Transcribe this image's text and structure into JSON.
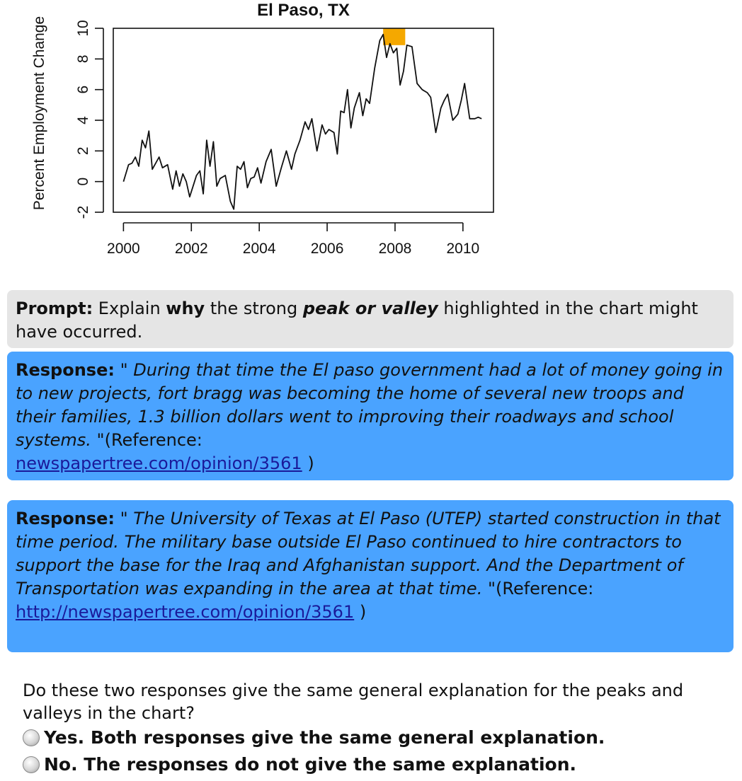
{
  "chart_data": {
    "type": "line",
    "title": "El Paso, TX",
    "xlabel": "",
    "ylabel": "Percent Employment Change",
    "xlim": [
      1999.7,
      2010.9
    ],
    "ylim": [
      -2,
      10
    ],
    "xticks": [
      2000,
      2002,
      2004,
      2006,
      2008,
      2010
    ],
    "xtick_labels": [
      "2000",
      "2002",
      "2004",
      "2006",
      "2008",
      "2010"
    ],
    "yticks": [
      -2,
      0,
      2,
      4,
      6,
      8,
      10
    ],
    "ytick_labels": [
      "-2",
      "0",
      "2",
      "4",
      "6",
      "8",
      "10"
    ],
    "grid": false,
    "highlight": {
      "x_start": 2007.65,
      "x_end": 2008.3,
      "y_bottom": 8.9,
      "y_top": 10,
      "color": "#f5a800"
    },
    "series": [
      {
        "x": [
          2000.0,
          2000.15,
          2000.25,
          2000.35,
          2000.45,
          2000.55,
          2000.65,
          2000.75,
          2000.85,
          2000.95,
          2001.05,
          2001.15,
          2001.3,
          2001.45,
          2001.55,
          2001.65,
          2001.75,
          2001.85,
          2001.95,
          2002.05,
          2002.15,
          2002.25,
          2002.35,
          2002.45,
          2002.55,
          2002.65,
          2002.75,
          2002.85,
          2003.0,
          2003.15,
          2003.25,
          2003.35,
          2003.45,
          2003.55,
          2003.65,
          2003.75,
          2003.85,
          2003.95,
          2004.05,
          2004.2,
          2004.35,
          2004.5,
          2004.65,
          2004.8,
          2004.95,
          2005.05,
          2005.2,
          2005.35,
          2005.45,
          2005.55,
          2005.7,
          2005.85,
          2005.95,
          2006.05,
          2006.2,
          2006.3,
          2006.4,
          2006.5,
          2006.6,
          2006.7,
          2006.8,
          2006.95,
          2007.05,
          2007.15,
          2007.25,
          2007.4,
          2007.55,
          2007.65,
          2007.75,
          2007.85,
          2007.95,
          2008.05,
          2008.15,
          2008.25,
          2008.35,
          2008.5,
          2008.65,
          2008.8,
          2008.95,
          2009.05,
          2009.2,
          2009.35,
          2009.45,
          2009.55,
          2009.7,
          2009.85,
          2009.95,
          2010.05,
          2010.2,
          2010.35,
          2010.45,
          2010.55
        ],
        "y": [
          0.0,
          1.1,
          1.2,
          1.6,
          1.0,
          2.7,
          2.2,
          3.3,
          0.8,
          1.2,
          1.6,
          0.9,
          1.1,
          -0.5,
          0.7,
          -0.3,
          0.5,
          0.0,
          -1.0,
          -0.3,
          0.4,
          0.7,
          -0.8,
          2.7,
          1.0,
          2.6,
          -0.3,
          0.2,
          0.4,
          -1.3,
          -1.8,
          1.0,
          0.8,
          1.3,
          -0.4,
          0.2,
          0.3,
          0.9,
          -0.1,
          1.3,
          2.1,
          -0.3,
          0.9,
          2.0,
          0.8,
          1.8,
          2.7,
          3.9,
          3.4,
          4.1,
          2.0,
          3.7,
          3.1,
          3.4,
          3.2,
          1.8,
          4.6,
          4.5,
          6.0,
          3.5,
          4.8,
          5.8,
          4.3,
          5.4,
          5.1,
          7.4,
          9.2,
          9.6,
          8.1,
          9.0,
          8.4,
          8.7,
          6.3,
          7.2,
          8.9,
          8.8,
          6.4,
          6.0,
          5.8,
          5.5,
          3.2,
          4.8,
          5.3,
          5.7,
          4.0,
          4.4,
          5.3,
          6.4,
          4.1,
          4.1,
          4.2,
          4.1
        ]
      }
    ]
  },
  "prompt": {
    "label": "Prompt:",
    "text_a": " Explain ",
    "text_b": "why",
    "text_c": " the strong ",
    "text_d": "peak or valley",
    "text_e": " highlighted in the chart might have occurred."
  },
  "responses": [
    {
      "label": "Response:",
      "quote": " \" During that time the El paso government had a lot of money going in to new projects, fort bragg was becoming the home of several new troops and their families, 1.3 billion dollars went to improving their roadways and school systems. \"",
      "ref_prefix": "(Reference: ",
      "link": "newspapertree.com/opinion/3561",
      "ref_suffix": " )"
    },
    {
      "label": "Response:",
      "quote": " \" The University of Texas at El Paso (UTEP) started construction in that time period. The military base outside El Paso continued to hire contractors to support the base for the Iraq and Afghanistan support. And the Department of Transportation was expanding in the area at that time. \"",
      "ref_prefix": "(Reference: ",
      "link": "http://newspapertree.com/opinion/3561",
      "ref_suffix": " )"
    }
  ],
  "question": {
    "text": "Do these two responses give the same general explanation for the peaks and valleys in the chart?",
    "options": [
      "Yes. Both responses give the same general explanation.",
      "No. The responses do not give the same explanation."
    ]
  }
}
